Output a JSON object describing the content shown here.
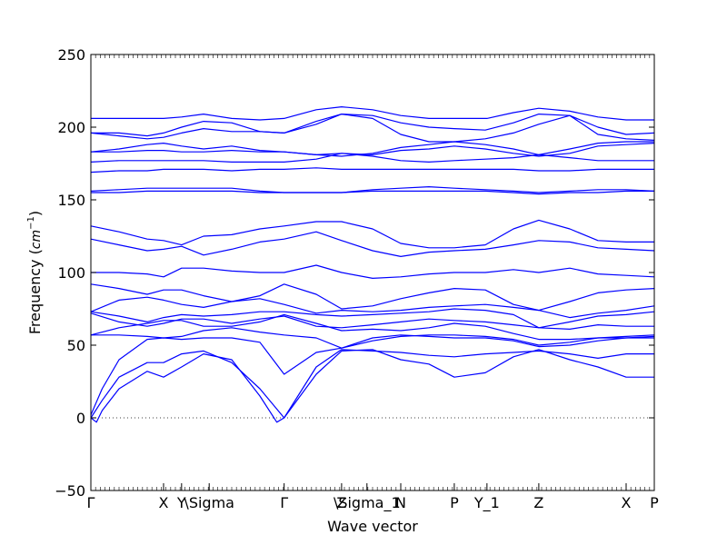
{
  "chart_data": {
    "type": "line",
    "title": "",
    "xlabel": "Wave vector",
    "ylabel_prefix": "Frequency (",
    "ylabel_unit_base": "cm",
    "ylabel_unit_exp": "−1",
    "ylabel_suffix": ")",
    "ylim": [
      -50,
      250
    ],
    "yticks": [
      -50,
      0,
      50,
      100,
      150,
      200,
      250
    ],
    "ytick_labels": [
      "−50",
      "0",
      "50",
      "100",
      "150",
      "200",
      "250"
    ],
    "xlim": [
      0,
      1
    ],
    "xticks": [
      {
        "pos": 0.0,
        "label": "Γ"
      },
      {
        "pos": 0.129,
        "label": "X"
      },
      {
        "pos": 0.161,
        "label": "Y"
      },
      {
        "pos": 0.21,
        "label": "\\Sigma"
      },
      {
        "pos": 0.343,
        "label": "Γ"
      },
      {
        "pos": 0.445,
        "label": "Z"
      },
      {
        "pos": 0.49,
        "label": "\\Sigma_1"
      },
      {
        "pos": 0.55,
        "label": "N"
      },
      {
        "pos": 0.645,
        "label": "P"
      },
      {
        "pos": 0.703,
        "label": "Y_1"
      },
      {
        "pos": 0.795,
        "label": "Z"
      },
      {
        "pos": 0.95,
        "label": "X"
      },
      {
        "pos": 1.0,
        "label": "P"
      }
    ],
    "zero_line": true,
    "series_color": "#0000ff",
    "series": [
      {
        "x": [
          0,
          0.1,
          0.129,
          0.161,
          0.2,
          0.25,
          0.3,
          0.343,
          0.4,
          0.445,
          0.5,
          0.55,
          0.6,
          0.645,
          0.703,
          0.75,
          0.795,
          0.85,
          0.9,
          0.95,
          1.0
        ],
        "y": [
          206,
          206,
          206,
          207,
          209,
          206,
          205,
          206,
          212,
          214,
          212,
          208,
          206,
          206,
          206,
          210,
          213,
          211,
          207,
          205,
          205
        ]
      },
      {
        "x": [
          0,
          0.05,
          0.1,
          0.129,
          0.161,
          0.2,
          0.25,
          0.3,
          0.343,
          0.4,
          0.445,
          0.5,
          0.55,
          0.6,
          0.645,
          0.7,
          0.75,
          0.795,
          0.85,
          0.9,
          0.95,
          1.0
        ],
        "y": [
          196,
          196,
          194,
          196,
          200,
          204,
          203,
          197,
          196,
          204,
          209,
          208,
          203,
          200,
          199,
          198,
          203,
          209,
          208,
          200,
          195,
          196
        ]
      },
      {
        "x": [
          0,
          0.05,
          0.1,
          0.129,
          0.161,
          0.2,
          0.25,
          0.3,
          0.343,
          0.4,
          0.445,
          0.5,
          0.55,
          0.6,
          0.645,
          0.7,
          0.75,
          0.795,
          0.85,
          0.9,
          0.95,
          1.0
        ],
        "y": [
          196,
          194,
          192,
          193,
          196,
          199,
          197,
          197,
          196,
          202,
          209,
          206,
          195,
          190,
          190,
          192,
          196,
          202,
          208,
          195,
          192,
          191
        ]
      },
      {
        "x": [
          0,
          0.05,
          0.1,
          0.129,
          0.161,
          0.2,
          0.25,
          0.3,
          0.343,
          0.4,
          0.445,
          0.5,
          0.55,
          0.6,
          0.645,
          0.7,
          0.75,
          0.795,
          0.85,
          0.9,
          0.95,
          1.0
        ],
        "y": [
          183,
          185,
          188,
          189,
          187,
          185,
          187,
          184,
          183,
          181,
          180,
          182,
          186,
          188,
          190,
          188,
          185,
          181,
          185,
          189,
          190,
          190
        ]
      },
      {
        "x": [
          0,
          0.05,
          0.1,
          0.129,
          0.161,
          0.2,
          0.25,
          0.3,
          0.343,
          0.4,
          0.445,
          0.5,
          0.55,
          0.6,
          0.645,
          0.7,
          0.75,
          0.795,
          0.85,
          0.9,
          0.95,
          1.0
        ],
        "y": [
          183,
          183,
          184,
          184,
          183,
          183,
          184,
          183,
          183,
          181,
          182,
          181,
          184,
          185,
          187,
          185,
          182,
          180,
          182,
          187,
          188,
          189
        ]
      },
      {
        "x": [
          0,
          0.05,
          0.1,
          0.129,
          0.161,
          0.2,
          0.25,
          0.3,
          0.343,
          0.4,
          0.445,
          0.5,
          0.55,
          0.6,
          0.645,
          0.7,
          0.75,
          0.795,
          0.85,
          0.9,
          0.95,
          1.0
        ],
        "y": [
          176,
          177,
          177,
          177,
          177,
          177,
          176,
          176,
          176,
          178,
          182,
          180,
          177,
          176,
          177,
          178,
          179,
          181,
          179,
          177,
          177,
          177
        ]
      },
      {
        "x": [
          0,
          0.05,
          0.1,
          0.129,
          0.161,
          0.2,
          0.25,
          0.3,
          0.343,
          0.4,
          0.445,
          0.5,
          0.55,
          0.6,
          0.645,
          0.7,
          0.75,
          0.795,
          0.85,
          0.9,
          0.95,
          1.0
        ],
        "y": [
          169,
          170,
          170,
          171,
          171,
          171,
          170,
          171,
          171,
          172,
          171,
          171,
          171,
          171,
          171,
          171,
          171,
          170,
          170,
          171,
          171,
          171
        ]
      },
      {
        "x": [
          0,
          0.05,
          0.1,
          0.129,
          0.161,
          0.2,
          0.25,
          0.3,
          0.343,
          0.4,
          0.445,
          0.5,
          0.55,
          0.6,
          0.645,
          0.7,
          0.75,
          0.795,
          0.85,
          0.9,
          0.95,
          1.0
        ],
        "y": [
          156,
          157,
          158,
          158,
          158,
          158,
          158,
          156,
          155,
          155,
          155,
          157,
          158,
          159,
          158,
          157,
          156,
          155,
          156,
          157,
          157,
          156
        ]
      },
      {
        "x": [
          0,
          0.05,
          0.1,
          0.129,
          0.161,
          0.2,
          0.25,
          0.3,
          0.343,
          0.4,
          0.445,
          0.5,
          0.55,
          0.6,
          0.645,
          0.7,
          0.75,
          0.795,
          0.85,
          0.9,
          0.95,
          1.0
        ],
        "y": [
          155,
          155,
          156,
          156,
          156,
          156,
          156,
          155,
          155,
          155,
          155,
          156,
          156,
          156,
          156,
          156,
          155,
          154,
          155,
          155,
          156,
          156
        ]
      },
      {
        "x": [
          0,
          0.05,
          0.1,
          0.129,
          0.161,
          0.2,
          0.25,
          0.3,
          0.343,
          0.4,
          0.445,
          0.5,
          0.55,
          0.6,
          0.645,
          0.7,
          0.75,
          0.795,
          0.85,
          0.9,
          0.95,
          1.0
        ],
        "y": [
          132,
          128,
          123,
          122,
          119,
          125,
          126,
          130,
          132,
          135,
          135,
          130,
          120,
          117,
          117,
          119,
          130,
          136,
          130,
          122,
          121,
          121
        ]
      },
      {
        "x": [
          0,
          0.05,
          0.1,
          0.129,
          0.161,
          0.2,
          0.25,
          0.3,
          0.343,
          0.4,
          0.445,
          0.5,
          0.55,
          0.6,
          0.645,
          0.7,
          0.75,
          0.795,
          0.85,
          0.9,
          0.95,
          1.0
        ],
        "y": [
          123,
          119,
          115,
          116,
          118,
          112,
          116,
          121,
          123,
          128,
          122,
          115,
          111,
          114,
          115,
          116,
          119,
          122,
          121,
          117,
          116,
          115
        ]
      },
      {
        "x": [
          0,
          0.05,
          0.1,
          0.129,
          0.161,
          0.2,
          0.25,
          0.3,
          0.343,
          0.4,
          0.445,
          0.5,
          0.55,
          0.6,
          0.645,
          0.7,
          0.75,
          0.795,
          0.85,
          0.9,
          0.95,
          1.0
        ],
        "y": [
          100,
          100,
          99,
          97,
          103,
          103,
          101,
          100,
          100,
          105,
          100,
          96,
          97,
          99,
          100,
          100,
          102,
          100,
          103,
          99,
          98,
          97
        ]
      },
      {
        "x": [
          0,
          0.05,
          0.1,
          0.129,
          0.161,
          0.2,
          0.25,
          0.3,
          0.343,
          0.4,
          0.445,
          0.5,
          0.55,
          0.6,
          0.645,
          0.7,
          0.75,
          0.795,
          0.85,
          0.9,
          0.95,
          1.0
        ],
        "y": [
          92,
          89,
          85,
          88,
          88,
          84,
          80,
          84,
          92,
          85,
          75,
          77,
          82,
          86,
          89,
          88,
          78,
          74,
          80,
          86,
          88,
          89
        ]
      },
      {
        "x": [
          0,
          0.05,
          0.1,
          0.129,
          0.161,
          0.2,
          0.25,
          0.3,
          0.343,
          0.4,
          0.445,
          0.5,
          0.55,
          0.6,
          0.645,
          0.7,
          0.75,
          0.795,
          0.85,
          0.9,
          0.95,
          1.0
        ],
        "y": [
          73,
          81,
          83,
          81,
          78,
          76,
          80,
          82,
          78,
          72,
          74,
          73,
          74,
          76,
          77,
          78,
          76,
          74,
          69,
          72,
          74,
          77
        ]
      },
      {
        "x": [
          0,
          0.05,
          0.1,
          0.129,
          0.161,
          0.2,
          0.25,
          0.3,
          0.343,
          0.4,
          0.445,
          0.5,
          0.55,
          0.6,
          0.645,
          0.7,
          0.75,
          0.795,
          0.85,
          0.9,
          0.95,
          1.0
        ],
        "y": [
          73,
          70,
          66,
          69,
          71,
          70,
          71,
          73,
          73,
          71,
          70,
          71,
          72,
          73,
          75,
          74,
          71,
          62,
          66,
          70,
          71,
          73
        ]
      },
      {
        "x": [
          0,
          0.05,
          0.1,
          0.129,
          0.161,
          0.2,
          0.25,
          0.3,
          0.343,
          0.4,
          0.445,
          0.5,
          0.55,
          0.6,
          0.645,
          0.7,
          0.75,
          0.795,
          0.85,
          0.9,
          0.95,
          1.0
        ],
        "y": [
          72,
          66,
          63,
          65,
          68,
          68,
          65,
          68,
          70,
          63,
          62,
          64,
          66,
          68,
          67,
          66,
          64,
          62,
          61,
          64,
          63,
          63
        ]
      },
      {
        "x": [
          0,
          0.05,
          0.1,
          0.129,
          0.161,
          0.2,
          0.25,
          0.3,
          0.343,
          0.4,
          0.445,
          0.5,
          0.55,
          0.6,
          0.645,
          0.7,
          0.75,
          0.795,
          0.85,
          0.9,
          0.95,
          1.0
        ],
        "y": [
          57,
          62,
          65,
          67,
          67,
          63,
          63,
          66,
          71,
          65,
          60,
          61,
          60,
          62,
          65,
          63,
          58,
          54,
          54,
          55,
          56,
          57
        ]
      },
      {
        "x": [
          0,
          0.05,
          0.1,
          0.129,
          0.161,
          0.2,
          0.25,
          0.3,
          0.343,
          0.4,
          0.445,
          0.5,
          0.55,
          0.6,
          0.645,
          0.7,
          0.75,
          0.795,
          0.85,
          0.9,
          0.95,
          1.0
        ],
        "y": [
          57,
          57,
          56,
          55,
          56,
          60,
          62,
          59,
          57,
          55,
          48,
          53,
          56,
          57,
          57,
          56,
          54,
          50,
          52,
          55,
          55,
          56
        ]
      },
      {
        "x": [
          0,
          0.02,
          0.05,
          0.1,
          0.129,
          0.161,
          0.2,
          0.25,
          0.3,
          0.343,
          0.4,
          0.445,
          0.5,
          0.55,
          0.6,
          0.645,
          0.7,
          0.75,
          0.795,
          0.85,
          0.9,
          0.95,
          1.0
        ],
        "y": [
          2,
          20,
          40,
          54,
          55,
          54,
          55,
          55,
          52,
          30,
          45,
          48,
          55,
          57,
          56,
          55,
          55,
          53,
          49,
          50,
          53,
          55,
          55
        ]
      },
      {
        "x": [
          0,
          0.02,
          0.05,
          0.1,
          0.129,
          0.161,
          0.2,
          0.25,
          0.3,
          0.343,
          0.4,
          0.445,
          0.5,
          0.55,
          0.6,
          0.645,
          0.7,
          0.75,
          0.795,
          0.85,
          0.9,
          0.95,
          1.0
        ],
        "y": [
          0,
          12,
          28,
          38,
          38,
          44,
          46,
          38,
          20,
          0,
          35,
          47,
          46,
          45,
          43,
          42,
          44,
          45,
          46,
          44,
          41,
          44,
          44
        ]
      },
      {
        "x": [
          0,
          0.01,
          0.02,
          0.05,
          0.1,
          0.129,
          0.161,
          0.2,
          0.25,
          0.3,
          0.33,
          0.343,
          0.4,
          0.445,
          0.5,
          0.55,
          0.6,
          0.645,
          0.7,
          0.75,
          0.795,
          0.85,
          0.9,
          0.95,
          1.0
        ],
        "y": [
          0,
          -3,
          5,
          20,
          32,
          28,
          35,
          44,
          40,
          15,
          -3,
          0,
          30,
          46,
          47,
          40,
          37,
          28,
          31,
          42,
          47,
          40,
          35,
          28,
          28
        ]
      }
    ]
  }
}
